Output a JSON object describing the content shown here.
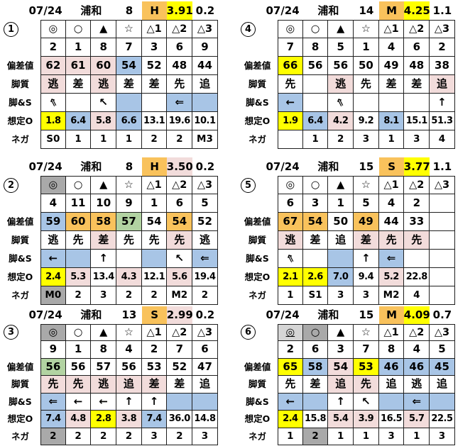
{
  "palette": {
    "yellow": "#ffff00",
    "orange": "#f9c25c",
    "pink": "#f2dcdb",
    "blue": "#a8c5e6",
    "green": "#b2d3a2",
    "gray": "#a9a9a9",
    "lightgray": "#d5d5d5",
    "border": "#1f1f1f"
  },
  "row_labels": {
    "dev": "偏差値",
    "style": "脚質",
    "arrow": "脚&S",
    "odds": "想定O",
    "nega": "ネガ"
  },
  "arrow_icon_names": {
    "←": "left-arrow-icon",
    "⇐": "double-left-arrow-icon",
    "↑": "up-arrow-icon",
    "↖": "up-left-arrow-icon",
    "⇖": "double-up-left-arrow-icon"
  },
  "tables": [
    {
      "badge": "1",
      "header": {
        "date": "07/24",
        "venue": "浦和",
        "race": "8",
        "pace": "H",
        "pace_bg": "orange",
        "odds": "3.91",
        "odds_bg": "yellow",
        "extra": "0.2"
      },
      "rows": {
        "mark": [
          {
            "t": "◎"
          },
          {
            "t": "○"
          },
          {
            "t": "▲"
          },
          {
            "t": "☆"
          },
          {
            "t": "△1"
          },
          {
            "t": "△2"
          },
          {
            "t": "△3"
          }
        ],
        "num": [
          {
            "t": "2"
          },
          {
            "t": "1"
          },
          {
            "t": "8"
          },
          {
            "t": "7"
          },
          {
            "t": "3"
          },
          {
            "t": "6"
          },
          {
            "t": "9"
          }
        ],
        "dev": [
          {
            "t": "62",
            "bg": "pink"
          },
          {
            "t": "61",
            "bg": "pink"
          },
          {
            "t": "60",
            "bg": "pink"
          },
          {
            "t": "54",
            "bg": "blue"
          },
          {
            "t": "52"
          },
          {
            "t": "48"
          },
          {
            "t": "44"
          }
        ],
        "style": [
          {
            "t": "逃",
            "bg": "pink"
          },
          {
            "t": "差"
          },
          {
            "t": "逃",
            "bg": "pink"
          },
          {
            "t": "差"
          },
          {
            "t": "差"
          },
          {
            "t": "先"
          },
          {
            "t": "追"
          }
        ],
        "arrow": [
          {
            "t": "⇖"
          },
          {
            "t": ""
          },
          {
            "t": "↖"
          },
          {
            "t": "",
            "bg": "blue"
          },
          {
            "t": ""
          },
          {
            "t": "⇐",
            "bg": "blue"
          },
          {
            "t": "",
            "bg": "blue"
          }
        ],
        "odds": [
          {
            "t": "1.8",
            "bg": "yellow"
          },
          {
            "t": "6.4",
            "bg": "blue"
          },
          {
            "t": "5.8",
            "bg": "pink"
          },
          {
            "t": "6.6",
            "bg": "blue"
          },
          {
            "t": "13.1"
          },
          {
            "t": "19.6"
          },
          {
            "t": "10.1"
          }
        ],
        "nega": [
          {
            "t": "S0"
          },
          {
            "t": "1"
          },
          {
            "t": "1"
          },
          {
            "t": "1"
          },
          {
            "t": "2"
          },
          {
            "t": "2"
          },
          {
            "t": "M3"
          }
        ]
      }
    },
    {
      "badge": "4",
      "header": {
        "date": "07/24",
        "venue": "浦和",
        "race": "14",
        "pace": "M",
        "pace_bg": "orange",
        "odds": "4.25",
        "odds_bg": "yellow",
        "extra": "1.1"
      },
      "rows": {
        "mark": [
          {
            "t": "◎"
          },
          {
            "t": "○"
          },
          {
            "t": "▲"
          },
          {
            "t": "☆"
          },
          {
            "t": "△1"
          },
          {
            "t": "△2"
          },
          {
            "t": "△3"
          }
        ],
        "num": [
          {
            "t": "7"
          },
          {
            "t": "8"
          },
          {
            "t": "5"
          },
          {
            "t": "1"
          },
          {
            "t": "4"
          },
          {
            "t": "6"
          },
          {
            "t": "2"
          }
        ],
        "dev": [
          {
            "t": "66",
            "bg": "yellow"
          },
          {
            "t": "56"
          },
          {
            "t": "56"
          },
          {
            "t": "50"
          },
          {
            "t": "49"
          },
          {
            "t": "48"
          },
          {
            "t": "38"
          }
        ],
        "style": [
          {
            "t": "先"
          },
          {
            "t": ""
          },
          {
            "t": "逃",
            "bg": "pink"
          },
          {
            "t": "先"
          },
          {
            "t": "差"
          },
          {
            "t": "差"
          },
          {
            "t": "追",
            "bg": "pink"
          }
        ],
        "arrow": [
          {
            "t": "←",
            "bg": "blue"
          },
          {
            "t": ""
          },
          {
            "t": "⇖"
          },
          {
            "t": ""
          },
          {
            "t": ""
          },
          {
            "t": ""
          },
          {
            "t": "↑"
          }
        ],
        "odds": [
          {
            "t": "1.9",
            "bg": "yellow"
          },
          {
            "t": "6.4",
            "bg": "blue"
          },
          {
            "t": "4.2",
            "bg": "pink"
          },
          {
            "t": "9.2"
          },
          {
            "t": "8.1",
            "bg": "blue"
          },
          {
            "t": "15.1"
          },
          {
            "t": "51.3"
          }
        ],
        "nega": [
          {
            "t": ""
          },
          {
            "t": "1"
          },
          {
            "t": "2"
          },
          {
            "t": "3"
          },
          {
            "t": "1"
          },
          {
            "t": "3"
          },
          {
            "t": "4"
          }
        ]
      }
    },
    {
      "badge": "2",
      "header": {
        "date": "07/24",
        "venue": "浦和",
        "race": "8",
        "pace": "H",
        "pace_bg": "orange",
        "odds": "3.50",
        "odds_bg": "pink",
        "extra": "0.2"
      },
      "rows": {
        "mark": [
          {
            "t": "◎",
            "bg": "gray"
          },
          {
            "t": "○"
          },
          {
            "t": "▲"
          },
          {
            "t": "☆"
          },
          {
            "t": "△1"
          },
          {
            "t": "△2"
          },
          {
            "t": "△3"
          }
        ],
        "num": [
          {
            "t": "4"
          },
          {
            "t": "11"
          },
          {
            "t": "10"
          },
          {
            "t": "9"
          },
          {
            "t": "1"
          },
          {
            "t": "6"
          },
          {
            "t": "5"
          }
        ],
        "dev": [
          {
            "t": "59",
            "bg": "blue"
          },
          {
            "t": "60",
            "bg": "orange"
          },
          {
            "t": "58",
            "bg": "orange"
          },
          {
            "t": "57",
            "bg": "green"
          },
          {
            "t": "54"
          },
          {
            "t": "54",
            "bg": "orange"
          },
          {
            "t": "52"
          }
        ],
        "style": [
          {
            "t": "逃"
          },
          {
            "t": "先"
          },
          {
            "t": "差",
            "bg": "pink"
          },
          {
            "t": "先"
          },
          {
            "t": "先"
          },
          {
            "t": "先",
            "bg": "pink"
          },
          {
            "t": "逃"
          }
        ],
        "arrow": [
          {
            "t": "←",
            "bg": "blue"
          },
          {
            "t": "",
            "bg": "blue"
          },
          {
            "t": "↑"
          },
          {
            "t": ""
          },
          {
            "t": "",
            "bg": "blue"
          },
          {
            "t": "↖"
          },
          {
            "t": "⇐",
            "bg": "blue"
          }
        ],
        "odds": [
          {
            "t": "2.4",
            "bg": "yellow"
          },
          {
            "t": "5.3",
            "bg": "pink"
          },
          {
            "t": "13.4"
          },
          {
            "t": "4.3",
            "bg": "pink"
          },
          {
            "t": "12.1"
          },
          {
            "t": "5.6",
            "bg": "pink"
          },
          {
            "t": "19.4"
          }
        ],
        "nega": [
          {
            "t": "M0",
            "bg": "gray"
          },
          {
            "t": "2"
          },
          {
            "t": "3"
          },
          {
            "t": "2"
          },
          {
            "t": "2"
          },
          {
            "t": "M2"
          },
          {
            "t": "2"
          }
        ]
      }
    },
    {
      "badge": "5",
      "header": {
        "date": "07/24",
        "venue": "浦和",
        "race": "15",
        "pace": "S",
        "pace_bg": "orange",
        "odds": "3.77",
        "odds_bg": "yellow",
        "extra": "1.1"
      },
      "rows": {
        "mark": [
          {
            "t": "◎"
          },
          {
            "t": "○"
          },
          {
            "t": "▲"
          },
          {
            "t": "☆"
          },
          {
            "t": "△1"
          },
          {
            "t": "△2"
          },
          {
            "t": "△3"
          }
        ],
        "num": [
          {
            "t": "6"
          },
          {
            "t": "3"
          },
          {
            "t": "1"
          },
          {
            "t": "5"
          },
          {
            "t": "4"
          },
          {
            "t": "2"
          },
          {
            "t": ""
          }
        ],
        "dev": [
          {
            "t": "67",
            "bg": "orange"
          },
          {
            "t": "54",
            "bg": "orange"
          },
          {
            "t": "50"
          },
          {
            "t": "49",
            "bg": "orange"
          },
          {
            "t": "44"
          },
          {
            "t": "33"
          },
          {
            "t": ""
          }
        ],
        "style": [
          {
            "t": "逃",
            "bg": "pink"
          },
          {
            "t": "差"
          },
          {
            "t": "追"
          },
          {
            "t": "差",
            "bg": "pink"
          },
          {
            "t": "先",
            "bg": "pink"
          },
          {
            "t": "先",
            "bg": "pink"
          },
          {
            "t": ""
          }
        ],
        "arrow": [
          {
            "t": "⇖"
          },
          {
            "t": ""
          },
          {
            "t": "",
            "bg": "blue"
          },
          {
            "t": "↑"
          },
          {
            "t": "⇐",
            "bg": "blue"
          },
          {
            "t": ""
          },
          {
            "t": ""
          }
        ],
        "odds": [
          {
            "t": "2.1",
            "bg": "yellow"
          },
          {
            "t": "2.6",
            "bg": "yellow"
          },
          {
            "t": "7.0",
            "bg": "blue"
          },
          {
            "t": "9.4"
          },
          {
            "t": "5.2",
            "bg": "pink"
          },
          {
            "t": "22.8"
          },
          {
            "t": ""
          }
        ],
        "nega": [
          {
            "t": "1"
          },
          {
            "t": "S1"
          },
          {
            "t": "3"
          },
          {
            "t": "3"
          },
          {
            "t": "M2"
          },
          {
            "t": "4"
          },
          {
            "t": ""
          }
        ]
      }
    },
    {
      "badge": "3",
      "header": {
        "date": "07/24",
        "venue": "浦和",
        "race": "13",
        "pace": "S",
        "pace_bg": "orange",
        "odds": "2.99",
        "odds_bg": "pink",
        "extra": "0.2"
      },
      "rows": {
        "mark": [
          {
            "t": "◎",
            "bg": "gray"
          },
          {
            "t": "○"
          },
          {
            "t": "▲"
          },
          {
            "t": "☆"
          },
          {
            "t": "△1"
          },
          {
            "t": "△2"
          },
          {
            "t": "△3"
          }
        ],
        "num": [
          {
            "t": "9"
          },
          {
            "t": "1"
          },
          {
            "t": "8"
          },
          {
            "t": "4"
          },
          {
            "t": "2"
          },
          {
            "t": "7"
          },
          {
            "t": "6"
          }
        ],
        "dev": [
          {
            "t": "56",
            "bg": "green"
          },
          {
            "t": "56"
          },
          {
            "t": "57"
          },
          {
            "t": "56"
          },
          {
            "t": "53"
          },
          {
            "t": "52"
          },
          {
            "t": "47"
          }
        ],
        "style": [
          {
            "t": "先",
            "bg": "pink"
          },
          {
            "t": "先",
            "bg": "pink"
          },
          {
            "t": "逃",
            "bg": "pink"
          },
          {
            "t": "追",
            "bg": "pink"
          },
          {
            "t": "差",
            "bg": "pink"
          },
          {
            "t": "差"
          },
          {
            "t": "追"
          }
        ],
        "arrow": [
          {
            "t": "⇐",
            "bg": "blue"
          },
          {
            "t": "←"
          },
          {
            "t": "←"
          },
          {
            "t": "↑"
          },
          {
            "t": "↑"
          },
          {
            "t": "",
            "bg": "blue"
          },
          {
            "t": "",
            "bg": "blue"
          }
        ],
        "odds": [
          {
            "t": "7.4",
            "bg": "blue"
          },
          {
            "t": "4.8",
            "bg": "pink"
          },
          {
            "t": "2.8",
            "bg": "yellow"
          },
          {
            "t": "3.8",
            "bg": "pink"
          },
          {
            "t": "7.4",
            "bg": "blue"
          },
          {
            "t": "36.0"
          },
          {
            "t": "14.8"
          }
        ],
        "nega": [
          {
            "t": "2",
            "bg": "gray"
          },
          {
            "t": "2"
          },
          {
            "t": "2"
          },
          {
            "t": "2"
          },
          {
            "t": "3"
          },
          {
            "t": "2"
          },
          {
            "t": "3"
          }
        ]
      }
    },
    {
      "badge": "6",
      "header": {
        "date": "07/24",
        "venue": "浦和",
        "race": "15",
        "pace": "M",
        "pace_bg": "orange",
        "odds": "4.09",
        "odds_bg": "yellow",
        "extra": "0.7"
      },
      "rows": {
        "mark": [
          {
            "t": "◎",
            "bg": "lightgray",
            "u": true
          },
          {
            "t": "○",
            "bg": "gray"
          },
          {
            "t": "▲"
          },
          {
            "t": "☆"
          },
          {
            "t": "△1"
          },
          {
            "t": "△2"
          },
          {
            "t": "△3"
          }
        ],
        "num": [
          {
            "t": "2"
          },
          {
            "t": "6"
          },
          {
            "t": "3"
          },
          {
            "t": "7"
          },
          {
            "t": "8"
          },
          {
            "t": "4"
          },
          {
            "t": "5"
          }
        ],
        "dev": [
          {
            "t": "65",
            "bg": "yellow"
          },
          {
            "t": "58",
            "bg": "blue"
          },
          {
            "t": "54",
            "bg": "pink"
          },
          {
            "t": "53",
            "bg": "yellow"
          },
          {
            "t": "46",
            "bg": "blue"
          },
          {
            "t": "46",
            "bg": "blue"
          },
          {
            "t": "45",
            "bg": "blue"
          }
        ],
        "style": [
          {
            "t": "先"
          },
          {
            "t": "差"
          },
          {
            "t": "追",
            "bg": "pink"
          },
          {
            "t": "先",
            "bg": "pink"
          },
          {
            "t": "追"
          },
          {
            "t": "逃"
          },
          {
            "t": "追"
          }
        ],
        "arrow": [
          {
            "t": "←",
            "bg": "blue"
          },
          {
            "t": "",
            "bg": "blue"
          },
          {
            "t": "↑"
          },
          {
            "t": "↖"
          },
          {
            "t": "",
            "bg": "blue"
          },
          {
            "t": "⇐",
            "bg": "blue"
          },
          {
            "t": "",
            "bg": "blue"
          }
        ],
        "odds": [
          {
            "t": "2.4",
            "bg": "yellow"
          },
          {
            "t": "15.8"
          },
          {
            "t": "5.4",
            "bg": "pink"
          },
          {
            "t": "3.9",
            "bg": "pink"
          },
          {
            "t": "16.5"
          },
          {
            "t": "5.7",
            "bg": "pink"
          },
          {
            "t": "22.5"
          }
        ],
        "nega": [
          {
            "t": "1"
          },
          {
            "t": "2",
            "bg": "gray"
          },
          {
            "t": "1"
          },
          {
            "t": "1"
          },
          {
            "t": "3"
          },
          {
            "t": "1"
          },
          {
            "t": "3"
          }
        ]
      }
    }
  ]
}
